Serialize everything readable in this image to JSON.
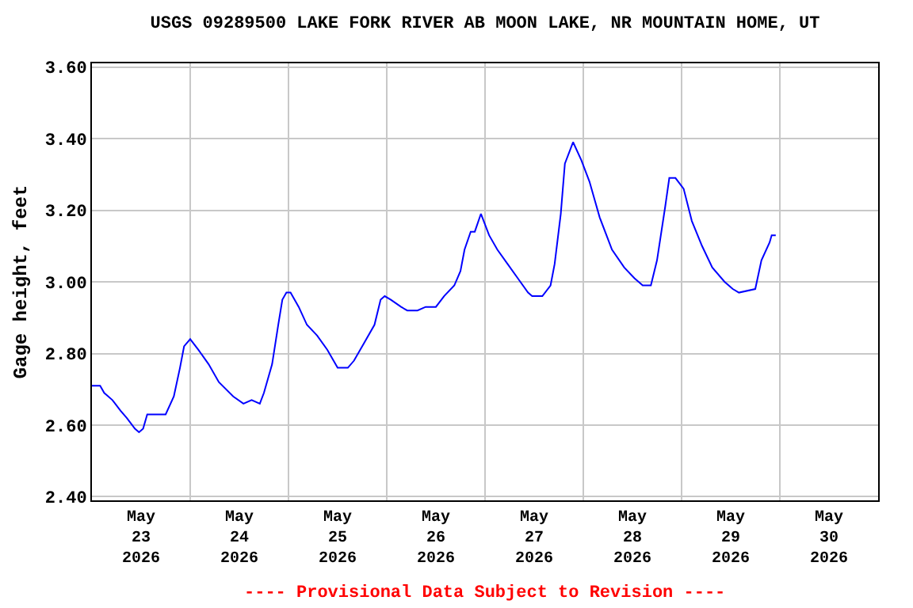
{
  "chart_data": {
    "type": "line",
    "title": "USGS 09289500 LAKE FORK RIVER AB MOON LAKE, NR MOUNTAIN HOME, UT",
    "ylabel": "Gage height, feet",
    "annotations": [
      "---- Provisional Data Subject to Revision ----"
    ],
    "x": [
      "2026-05-23T00:00",
      "2026-05-23T02:00",
      "2026-05-23T03:00",
      "2026-05-23T05:00",
      "2026-05-23T07:00",
      "2026-05-23T08:30",
      "2026-05-23T10:30",
      "2026-05-23T11:30",
      "2026-05-23T12:30",
      "2026-05-23T13:30",
      "2026-05-23T18:00",
      "2026-05-23T20:00",
      "2026-05-23T21:30",
      "2026-05-23T22:30",
      "2026-05-24T00:00",
      "2026-05-24T02:00",
      "2026-05-24T04:30",
      "2026-05-24T07:00",
      "2026-05-24T10:30",
      "2026-05-24T13:00",
      "2026-05-24T15:00",
      "2026-05-24T17:00",
      "2026-05-24T18:00",
      "2026-05-24T20:00",
      "2026-05-24T21:30",
      "2026-05-24T22:30",
      "2026-05-24T23:30",
      "2026-05-25T00:30",
      "2026-05-25T02:30",
      "2026-05-25T04:30",
      "2026-05-25T07:00",
      "2026-05-25T09:30",
      "2026-05-25T12:00",
      "2026-05-25T14:30",
      "2026-05-25T16:00",
      "2026-05-25T18:30",
      "2026-05-25T21:00",
      "2026-05-25T22:30",
      "2026-05-25T23:30",
      "2026-05-26T01:00",
      "2026-05-26T03:30",
      "2026-05-26T05:00",
      "2026-05-26T07:30",
      "2026-05-26T09:30",
      "2026-05-26T12:00",
      "2026-05-26T14:00",
      "2026-05-26T16:30",
      "2026-05-26T18:00",
      "2026-05-26T19:00",
      "2026-05-26T20:30",
      "2026-05-26T21:30",
      "2026-05-26T23:00",
      "2026-05-27T01:00",
      "2026-05-27T03:00",
      "2026-05-27T05:30",
      "2026-05-27T08:00",
      "2026-05-27T10:30",
      "2026-05-27T11:30",
      "2026-05-27T14:00",
      "2026-05-27T16:00",
      "2026-05-27T17:00",
      "2026-05-27T18:30",
      "2026-05-27T19:30",
      "2026-05-27T21:30",
      "2026-05-27T23:30",
      "2026-05-28T01:30",
      "2026-05-28T04:00",
      "2026-05-28T07:00",
      "2026-05-28T10:00",
      "2026-05-28T12:30",
      "2026-05-28T14:30",
      "2026-05-28T16:30",
      "2026-05-28T18:00",
      "2026-05-28T20:00",
      "2026-05-28T21:00",
      "2026-05-28T22:30",
      "2026-05-29T00:30",
      "2026-05-29T02:30",
      "2026-05-29T05:00",
      "2026-05-29T07:30",
      "2026-05-29T10:30",
      "2026-05-29T12:30",
      "2026-05-29T14:00",
      "2026-05-29T18:00",
      "2026-05-29T19:30",
      "2026-05-29T21:30",
      "2026-05-29T22:00",
      "2026-05-29T23:00"
    ],
    "series": [
      {
        "color": "#0000ff",
        "values": [
          2.71,
          2.71,
          2.69,
          2.67,
          2.64,
          2.62,
          2.59,
          2.58,
          2.59,
          2.63,
          2.63,
          2.68,
          2.76,
          2.82,
          2.84,
          2.81,
          2.77,
          2.72,
          2.68,
          2.66,
          2.67,
          2.66,
          2.69,
          2.77,
          2.88,
          2.95,
          2.97,
          2.97,
          2.93,
          2.88,
          2.85,
          2.81,
          2.76,
          2.76,
          2.78,
          2.83,
          2.88,
          2.95,
          2.96,
          2.95,
          2.93,
          2.92,
          2.92,
          2.93,
          2.93,
          2.96,
          2.99,
          3.03,
          3.09,
          3.14,
          3.14,
          3.19,
          3.13,
          3.09,
          3.05,
          3.01,
          2.97,
          2.96,
          2.96,
          2.99,
          3.05,
          3.19,
          3.33,
          3.39,
          3.34,
          3.28,
          3.18,
          3.09,
          3.04,
          3.01,
          2.99,
          2.99,
          3.06,
          3.21,
          3.29,
          3.29,
          3.26,
          3.17,
          3.1,
          3.04,
          3.0,
          2.98,
          2.97,
          2.98,
          3.06,
          3.11,
          3.13,
          3.13
        ]
      }
    ],
    "xlim": [
      "2026-05-23",
      "2026-05-31"
    ],
    "xticks": [
      {
        "value": "2026-05-24",
        "label": null
      },
      {
        "value": "2026-05-25",
        "label": null
      },
      {
        "value": "2026-05-26",
        "label": null
      },
      {
        "value": "2026-05-27",
        "label": null
      },
      {
        "value": "2026-05-28",
        "label": null
      },
      {
        "value": "2026-05-29",
        "label": null
      },
      {
        "value": "2026-05-30",
        "label": null
      },
      {
        "value": "2026-05-23T12:00",
        "label": "May\n23\n2026"
      },
      {
        "value": "2026-05-24T12:00",
        "label": "May\n24\n2026"
      },
      {
        "value": "2026-05-25T12:00",
        "label": "May\n25\n2026"
      },
      {
        "value": "2026-05-26T12:00",
        "label": "May\n26\n2026"
      },
      {
        "value": "2026-05-27T12:00",
        "label": "May\n27\n2026"
      },
      {
        "value": "2026-05-28T12:00",
        "label": "May\n28\n2026"
      },
      {
        "value": "2026-05-29T12:00",
        "label": "May\n29\n2026"
      },
      {
        "value": "2026-05-30T12:00",
        "label": "May\n30\n2026"
      }
    ],
    "ylim": [
      2.39,
      3.61
    ],
    "yticks": [
      {
        "value": 2.4,
        "label": "2.40"
      },
      {
        "value": 2.6,
        "label": "2.60"
      },
      {
        "value": 2.8,
        "label": "2.80"
      },
      {
        "value": 3.0,
        "label": "3.00"
      },
      {
        "value": 3.2,
        "label": "3.20"
      },
      {
        "value": 3.4,
        "label": "3.40"
      },
      {
        "value": 3.6,
        "label": "3.60"
      }
    ],
    "grid": true,
    "line_style": "solid",
    "marker": "none"
  }
}
